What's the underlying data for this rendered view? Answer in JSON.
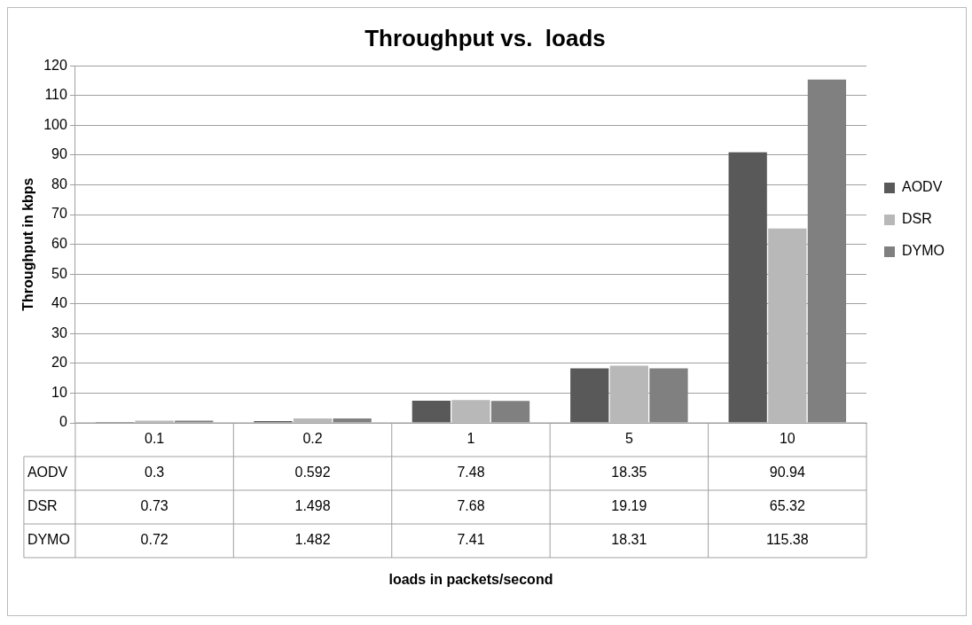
{
  "chart_data": {
    "type": "bar",
    "title": "Throughput vs.  loads",
    "annotations": [
      "loads in packets/second"
    ],
    "ylabel": "Throughput in kbps",
    "categories": [
      "0.1",
      "0.2",
      "1",
      "5",
      "10"
    ],
    "series": [
      {
        "name": "AODV",
        "color": "#595959",
        "values": [
          0.3,
          0.592,
          7.48,
          18.35,
          90.94
        ]
      },
      {
        "name": "DSR",
        "color": "#b8b8b8",
        "values": [
          0.73,
          1.498,
          7.68,
          19.19,
          65.32
        ]
      },
      {
        "name": "DYMO",
        "color": "#808080",
        "values": [
          0.72,
          1.482,
          7.41,
          18.31,
          115.38
        ]
      }
    ],
    "ylim": [
      0,
      120
    ],
    "yticks": [
      0,
      10,
      20,
      30,
      40,
      50,
      60,
      70,
      80,
      90,
      100,
      110,
      120
    ],
    "grid": "y",
    "legend": "right",
    "data_labels": true
  }
}
